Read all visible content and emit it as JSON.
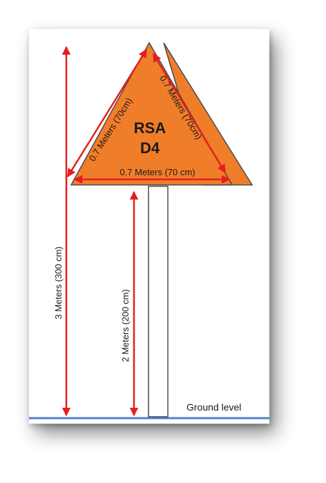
{
  "sign": {
    "line1": "RSA",
    "line2": "D4",
    "face_color": "#f07d2a",
    "outline_color": "#4a4a4a"
  },
  "dimensions": {
    "side_left": "0.7 Meters (70cm)",
    "side_right": "0.7 Meters (70cm)",
    "base": "0.7 Meters (70 cm)",
    "total_height": "3 Meters (300 cm)",
    "post_height": "2 Meters (200 cm)",
    "arrow_color": "#e41e1e"
  },
  "ground": {
    "label": "Ground level",
    "line_color": "#4f7fd0"
  }
}
